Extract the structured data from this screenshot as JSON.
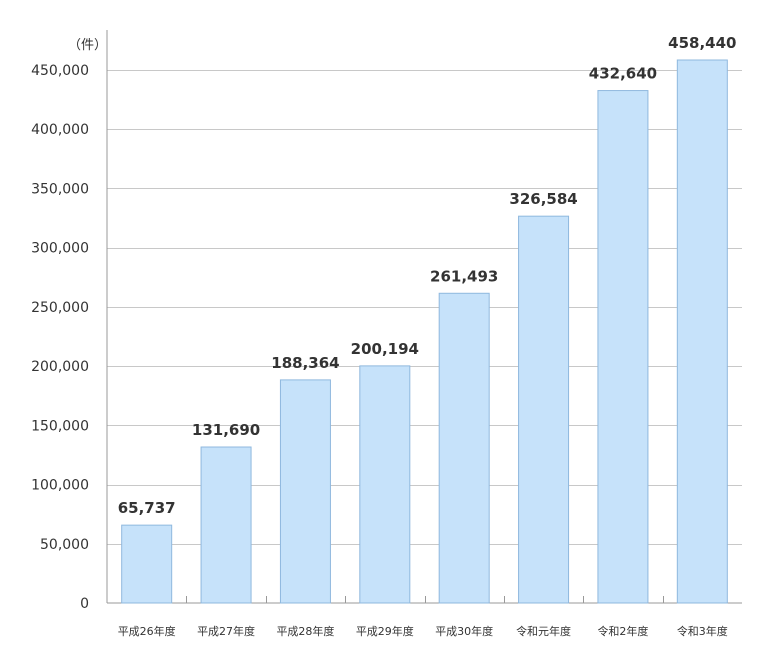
{
  "chart_data": {
    "type": "bar",
    "unit_label": "（件）",
    "categories": [
      "平成26年度",
      "平成27年度",
      "平成28年度",
      "平成29年度",
      "平成30年度",
      "令和元年度",
      "令和2年度",
      "令和3年度"
    ],
    "values": [
      65737,
      131690,
      188364,
      200194,
      261493,
      326584,
      432640,
      458440
    ],
    "value_labels": [
      "65,737",
      "131,690",
      "188,364",
      "200,194",
      "261,493",
      "326,584",
      "432,640",
      "458,440"
    ],
    "ylim": [
      0,
      450000
    ],
    "yticks": [
      0,
      50000,
      100000,
      150000,
      200000,
      250000,
      300000,
      350000,
      400000,
      450000
    ],
    "ytick_labels": [
      "0",
      "50,000",
      "100,000",
      "150,000",
      "200,000",
      "250,000",
      "300,000",
      "350,000",
      "400,000",
      "450,000"
    ],
    "grid": true,
    "colors": {
      "bar_fill": "#C6E2FA",
      "bar_stroke": "#8FB8DE",
      "grid": "#C8C8C8",
      "axis": "#999999"
    }
  }
}
